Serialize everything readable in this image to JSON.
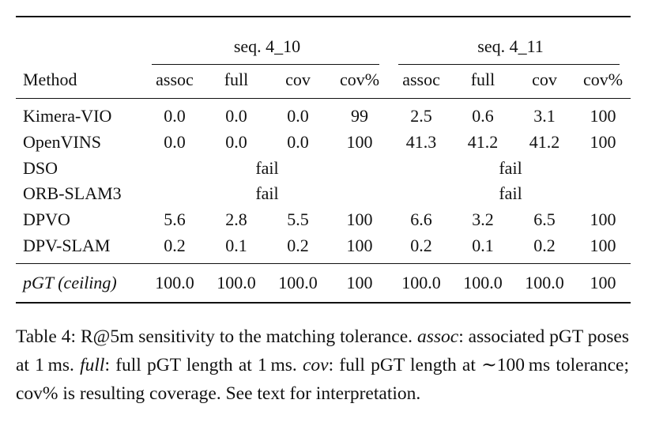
{
  "table": {
    "groups": [
      "seq. 4_10",
      "seq. 4_11"
    ],
    "method_header": "Method",
    "subcolumns": [
      "assoc",
      "full",
      "cov",
      "cov%",
      "assoc",
      "full",
      "cov",
      "cov%"
    ],
    "rows": [
      {
        "method": "Kimera-VIO",
        "cells": [
          "0.0",
          "0.0",
          "0.0",
          "99",
          "2.5",
          "0.6",
          "3.1",
          "100"
        ]
      },
      {
        "method": "OpenVINS",
        "cells": [
          "0.0",
          "0.0",
          "0.0",
          "100",
          "41.3",
          "41.2",
          "41.2",
          "100"
        ]
      },
      {
        "method": "DSO",
        "fail": [
          "fail",
          "fail"
        ]
      },
      {
        "method": "ORB-SLAM3",
        "fail": [
          "fail",
          "fail"
        ]
      },
      {
        "method": "DPVO",
        "cells": [
          "5.6",
          "2.8",
          "5.5",
          "100",
          "6.6",
          "3.2",
          "6.5",
          "100"
        ]
      },
      {
        "method": "DPV-SLAM",
        "cells": [
          "0.2",
          "0.1",
          "0.2",
          "100",
          "0.2",
          "0.1",
          "0.2",
          "100"
        ]
      }
    ],
    "ceiling_row": {
      "method": "pGT (ceiling)",
      "cells": [
        "100.0",
        "100.0",
        "100.0",
        "100",
        "100.0",
        "100.0",
        "100.0",
        "100"
      ]
    }
  },
  "caption": {
    "part1": "Table 4: R@5m sensitivity to the matching tolerance. ",
    "assoc_term": "assoc",
    "part2": ": as­sociated pGT poses at 1 ms. ",
    "full_term": "full",
    "part3": ": full pGT length at 1 ms. ",
    "cov_term": "cov",
    "part4": ": full pGT length at ∼100 ms tolerance; cov% is resulting cover­age. See text for interpretation."
  }
}
